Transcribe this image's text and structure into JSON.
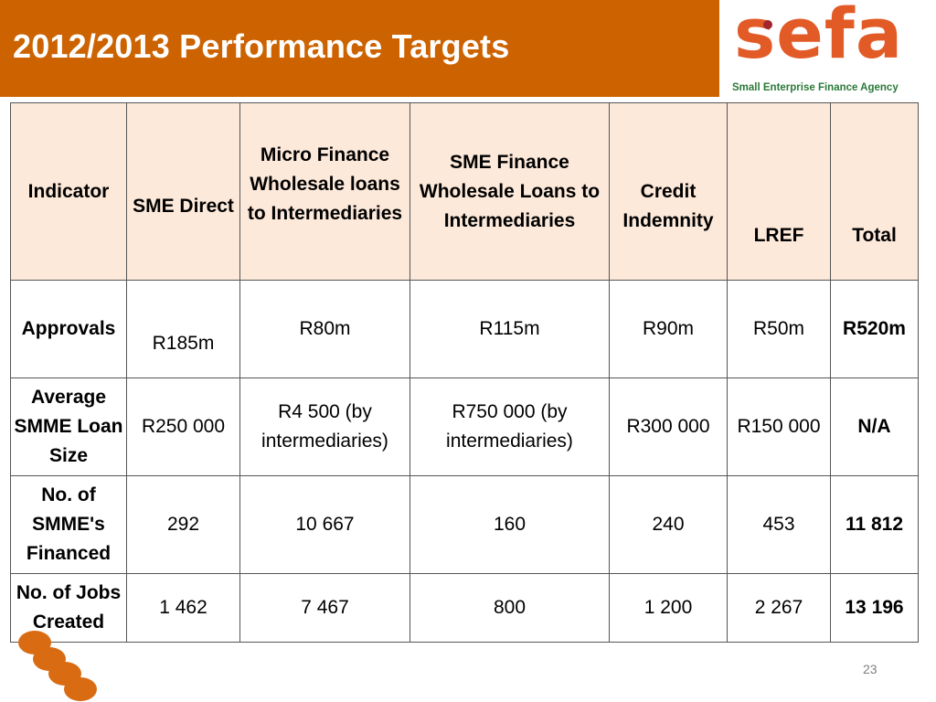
{
  "title": "2012/2013 Performance Targets",
  "logo": {
    "word": "sefa",
    "subtitle": "Small Enterprise Finance Agency"
  },
  "table": {
    "headers": [
      "Indicator",
      "SME Direct",
      "Micro Finance Wholesale loans to Intermediaries",
      "SME Finance Wholesale Loans to Intermediaries",
      "Credit Indemnity",
      "LREF",
      "Total"
    ],
    "rows": [
      {
        "label": "Approvals",
        "cells": [
          "R185m",
          "R80m",
          "R115m",
          "R90m",
          "R50m",
          "R520m"
        ]
      },
      {
        "label": "Average SMME Loan Size",
        "cells": [
          "R250 000",
          "R4 500 (by intermediaries)",
          "R750 000 (by intermediaries)",
          "R300 000",
          "R150 000",
          "N/A"
        ]
      },
      {
        "label": "No. of SMME's Financed",
        "cells": [
          "292",
          "10 667",
          "160",
          "240",
          "453",
          "11 812"
        ]
      },
      {
        "label": "No. of Jobs Created",
        "cells": [
          "1 462",
          "7 467",
          "800",
          "1 200",
          "2 267",
          "13 196"
        ]
      }
    ]
  },
  "page_number": "23",
  "colors": {
    "title_bar": "#cc6300",
    "header_fill": "#fde9da",
    "logo_orange": "#e25b27",
    "logo_green": "#2a7a38",
    "circles": "#d96b12"
  }
}
